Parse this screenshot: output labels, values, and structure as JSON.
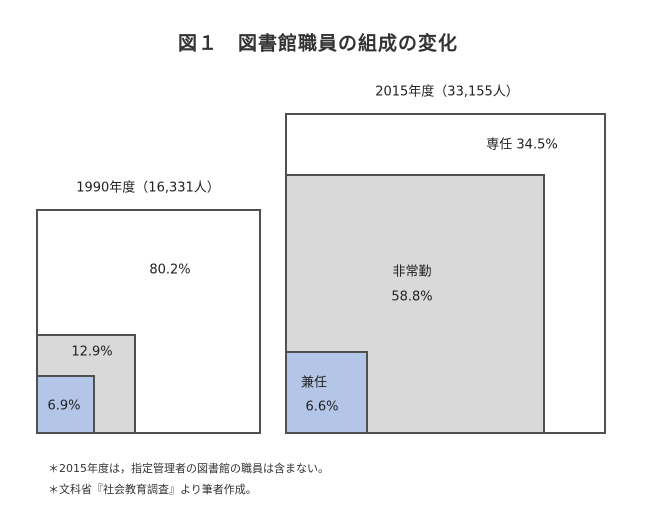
{
  "title": "図１　図書館職員の組成の変化",
  "chart_data": {
    "type": "nested-square-area",
    "title": "図１　図書館職員の組成の変化",
    "panels": [
      {
        "label": "1990年度（16,331人）",
        "total": 16331,
        "segments": [
          {
            "name": "",
            "value": 80.2,
            "label": "80.2%",
            "color": "#ffffff"
          },
          {
            "name": "",
            "value": 12.9,
            "label": "12.9%",
            "color": "#d9d9d9"
          },
          {
            "name": "",
            "value": 6.9,
            "label": "6.9%",
            "color": "#b4c6e7"
          }
        ]
      },
      {
        "label": "2015年度（33,155人）",
        "total": 33155,
        "segments": [
          {
            "name": "専任",
            "value": 34.5,
            "label": "専任 34.5%",
            "color": "#ffffff"
          },
          {
            "name": "非常勤",
            "value": 58.8,
            "label": "58.8%",
            "color": "#d9d9d9"
          },
          {
            "name": "兼任",
            "value": 6.6,
            "label": "6.6%",
            "color": "#b4c6e7"
          }
        ]
      }
    ]
  },
  "notes": [
    "＊2015年度は，指定管理者の図書館の職員は含まない。",
    "＊文科省『社会教育調査』より筆者作成。"
  ]
}
